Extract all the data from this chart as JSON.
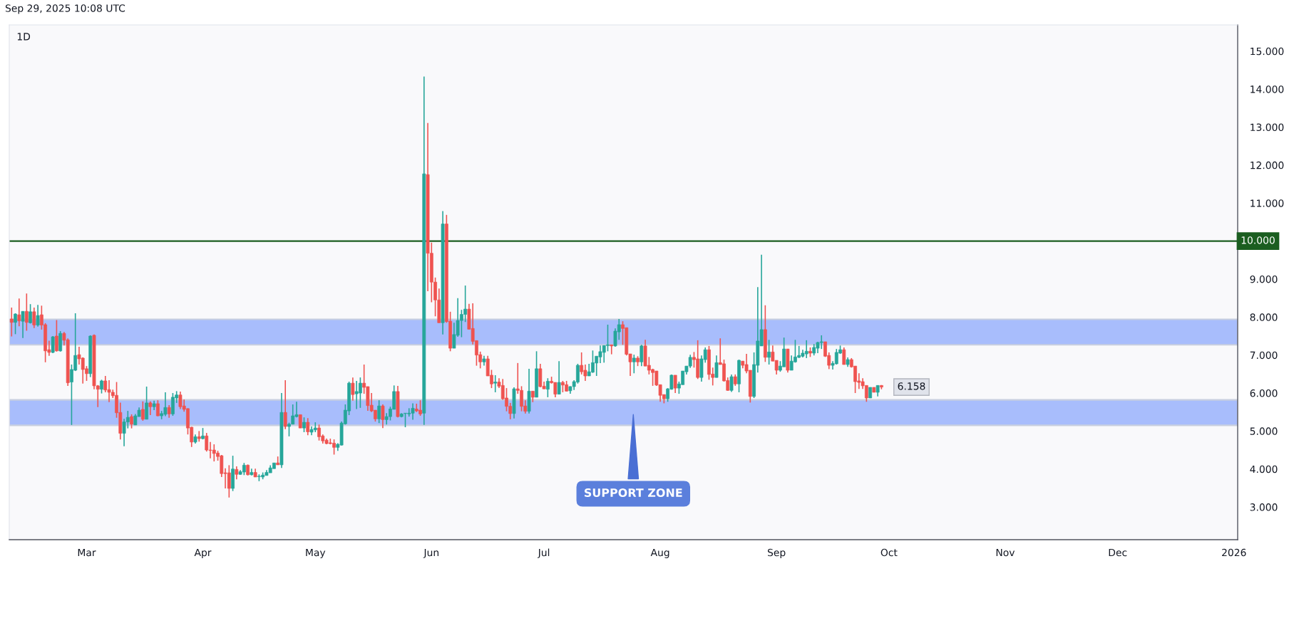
{
  "chart_data": {
    "type": "candlestick",
    "title": "1D",
    "annotations": [
      "Sep 29, 2025 10:08 UTC",
      {
        "text": "6.158",
        "x": "2025-09-29",
        "y": 6.158
      }
    ],
    "x": [
      "2025-02-09",
      "2025-02-10",
      "2025-02-11",
      "2025-02-12",
      "2025-02-13",
      "2025-02-14",
      "2025-02-15",
      "2025-02-16",
      "2025-02-17",
      "2025-02-18",
      "2025-02-19",
      "2025-02-20",
      "2025-02-21",
      "2025-02-22",
      "2025-02-23",
      "2025-02-24",
      "2025-02-25",
      "2025-02-26",
      "2025-02-27",
      "2025-02-28",
      "2025-03-01",
      "2025-03-02",
      "2025-03-03",
      "2025-03-04",
      "2025-03-05",
      "2025-03-06",
      "2025-03-07",
      "2025-03-08",
      "2025-03-09",
      "2025-03-10",
      "2025-03-11",
      "2025-03-12",
      "2025-03-13",
      "2025-03-14",
      "2025-03-15",
      "2025-03-16",
      "2025-03-17",
      "2025-03-18",
      "2025-03-19",
      "2025-03-20",
      "2025-03-21",
      "2025-03-22",
      "2025-03-23",
      "2025-03-24",
      "2025-03-25",
      "2025-03-26",
      "2025-03-27",
      "2025-03-28",
      "2025-03-29",
      "2025-03-30",
      "2025-03-31",
      "2025-04-01",
      "2025-04-02",
      "2025-04-03",
      "2025-04-04",
      "2025-04-05",
      "2025-04-06",
      "2025-04-07",
      "2025-04-08",
      "2025-04-09",
      "2025-04-10",
      "2025-04-11",
      "2025-04-12",
      "2025-04-13",
      "2025-04-14",
      "2025-04-15",
      "2025-04-16",
      "2025-04-17",
      "2025-04-18",
      "2025-04-19",
      "2025-04-20",
      "2025-04-21",
      "2025-04-22",
      "2025-04-23",
      "2025-04-24",
      "2025-04-25",
      "2025-04-26",
      "2025-04-27",
      "2025-04-28",
      "2025-04-29",
      "2025-04-30",
      "2025-05-01",
      "2025-05-02",
      "2025-05-03",
      "2025-05-04",
      "2025-05-05",
      "2025-05-06",
      "2025-05-07",
      "2025-05-08",
      "2025-05-09",
      "2025-05-10",
      "2025-05-11",
      "2025-05-12",
      "2025-05-13",
      "2025-05-14",
      "2025-05-15",
      "2025-05-16",
      "2025-05-17",
      "2025-05-18",
      "2025-05-19",
      "2025-05-20",
      "2025-05-21",
      "2025-05-22",
      "2025-05-23",
      "2025-05-24",
      "2025-05-25",
      "2025-05-26",
      "2025-05-27",
      "2025-05-28",
      "2025-05-29",
      "2025-05-30",
      "2025-05-31",
      "2025-06-01",
      "2025-06-02",
      "2025-06-03",
      "2025-06-04",
      "2025-06-05",
      "2025-06-06",
      "2025-06-07",
      "2025-06-08",
      "2025-06-09",
      "2025-06-10",
      "2025-06-11",
      "2025-06-12",
      "2025-06-13",
      "2025-06-14",
      "2025-06-15",
      "2025-06-16",
      "2025-06-17",
      "2025-06-18",
      "2025-06-19",
      "2025-06-20",
      "2025-06-21",
      "2025-06-22",
      "2025-06-23",
      "2025-06-24",
      "2025-06-25",
      "2025-06-26",
      "2025-06-27",
      "2025-06-28",
      "2025-06-29",
      "2025-06-30",
      "2025-07-01",
      "2025-07-02",
      "2025-07-03",
      "2025-07-04",
      "2025-07-05",
      "2025-07-06",
      "2025-07-07",
      "2025-07-08",
      "2025-07-09",
      "2025-07-10",
      "2025-07-11",
      "2025-07-12",
      "2025-07-13",
      "2025-07-14",
      "2025-07-15",
      "2025-07-16",
      "2025-07-17",
      "2025-07-18",
      "2025-07-19",
      "2025-07-20",
      "2025-07-21",
      "2025-07-22",
      "2025-07-23",
      "2025-07-24",
      "2025-07-25",
      "2025-07-26",
      "2025-07-27",
      "2025-07-28",
      "2025-07-29",
      "2025-07-30",
      "2025-07-31",
      "2025-08-01",
      "2025-08-02",
      "2025-08-03",
      "2025-08-04",
      "2025-08-05",
      "2025-08-06",
      "2025-08-07",
      "2025-08-08",
      "2025-08-09",
      "2025-08-10",
      "2025-08-11",
      "2025-08-12",
      "2025-08-13",
      "2025-08-14",
      "2025-08-15",
      "2025-08-16",
      "2025-08-17",
      "2025-08-18",
      "2025-08-19",
      "2025-08-20",
      "2025-08-21",
      "2025-08-22",
      "2025-08-23",
      "2025-08-24",
      "2025-08-25",
      "2025-08-26",
      "2025-08-27",
      "2025-08-28",
      "2025-08-29",
      "2025-08-30",
      "2025-08-31",
      "2025-09-01",
      "2025-09-02",
      "2025-09-03",
      "2025-09-04",
      "2025-09-05",
      "2025-09-06",
      "2025-09-07",
      "2025-09-08",
      "2025-09-09",
      "2025-09-10",
      "2025-09-11",
      "2025-09-12",
      "2025-09-13",
      "2025-09-14",
      "2025-09-15",
      "2025-09-16",
      "2025-09-17",
      "2025-09-18",
      "2025-09-19",
      "2025-09-20",
      "2025-09-21",
      "2025-09-22",
      "2025-09-23",
      "2025-09-24",
      "2025-09-25",
      "2025-09-26",
      "2025-09-27",
      "2025-09-28",
      "2025-09-29"
    ],
    "ohlc": [
      [
        7.95,
        8.25,
        7.49,
        7.86
      ],
      [
        7.86,
        8.1,
        7.55,
        8.08
      ],
      [
        8.06,
        8.49,
        7.76,
        7.9
      ],
      [
        7.89,
        8.15,
        7.45,
        8.15
      ],
      [
        8.15,
        8.62,
        7.64,
        7.86
      ],
      [
        7.85,
        8.34,
        7.83,
        8.14
      ],
      [
        8.14,
        8.25,
        7.71,
        7.79
      ],
      [
        7.79,
        8.32,
        7.75,
        8.04
      ],
      [
        8.06,
        8.3,
        7.67,
        7.79
      ],
      [
        7.8,
        7.84,
        6.81,
        7.11
      ],
      [
        7.14,
        7.38,
        6.98,
        7.07
      ],
      [
        7.07,
        7.5,
        7.05,
        7.48
      ],
      [
        7.5,
        7.92,
        7.09,
        7.11
      ],
      [
        7.11,
        7.63,
        7.09,
        7.57
      ],
      [
        7.57,
        7.61,
        7.25,
        7.39
      ],
      [
        7.4,
        7.44,
        6.19,
        6.27
      ],
      [
        6.29,
        6.75,
        5.16,
        6.62
      ],
      [
        6.6,
        8.1,
        6.58,
        6.99
      ],
      [
        7.01,
        7.22,
        6.75,
        6.9
      ],
      [
        6.92,
        6.94,
        6.25,
        6.62
      ],
      [
        6.64,
        6.71,
        6.32,
        6.51
      ],
      [
        6.51,
        7.52,
        6.42,
        7.5
      ],
      [
        7.52,
        7.54,
        6.1,
        6.19
      ],
      [
        6.19,
        6.21,
        5.63,
        6.1
      ],
      [
        6.1,
        6.35,
        5.99,
        6.32
      ],
      [
        6.32,
        6.45,
        6.02,
        6.08
      ],
      [
        6.09,
        6.34,
        5.76,
        6.02
      ],
      [
        6.02,
        6.09,
        5.87,
        5.93
      ],
      [
        5.94,
        6.29,
        5.35,
        5.48
      ],
      [
        5.49,
        5.75,
        4.78,
        4.94
      ],
      [
        4.94,
        5.32,
        4.6,
        5.24
      ],
      [
        5.24,
        5.53,
        5.07,
        5.36
      ],
      [
        5.38,
        5.44,
        5.07,
        5.18
      ],
      [
        5.16,
        5.45,
        5.16,
        5.4
      ],
      [
        5.38,
        5.62,
        5.38,
        5.55
      ],
      [
        5.57,
        5.78,
        5.27,
        5.31
      ],
      [
        5.31,
        6.17,
        5.31,
        5.74
      ],
      [
        5.74,
        5.78,
        5.42,
        5.64
      ],
      [
        5.64,
        5.8,
        5.55,
        5.72
      ],
      [
        5.72,
        5.81,
        5.39,
        5.4
      ],
      [
        5.4,
        5.53,
        5.31,
        5.46
      ],
      [
        5.44,
        6.02,
        5.39,
        5.62
      ],
      [
        5.62,
        5.68,
        5.35,
        5.45
      ],
      [
        5.45,
        6.0,
        5.4,
        5.89
      ],
      [
        5.87,
        6.05,
        5.74,
        5.95
      ],
      [
        5.95,
        6.04,
        5.58,
        5.64
      ],
      [
        5.66,
        5.83,
        5.51,
        5.57
      ],
      [
        5.59,
        5.6,
        4.91,
        5.08
      ],
      [
        5.1,
        5.11,
        4.58,
        4.71
      ],
      [
        4.71,
        4.91,
        4.67,
        4.85
      ],
      [
        4.85,
        5.0,
        4.72,
        4.8
      ],
      [
        4.8,
        5.08,
        4.78,
        4.87
      ],
      [
        4.87,
        4.95,
        4.46,
        4.5
      ],
      [
        4.5,
        4.71,
        4.28,
        4.49
      ],
      [
        4.5,
        4.65,
        4.2,
        4.41
      ],
      [
        4.42,
        4.48,
        4.22,
        4.33
      ],
      [
        4.35,
        4.37,
        3.79,
        3.88
      ],
      [
        3.9,
        4.02,
        3.49,
        3.88
      ],
      [
        3.9,
        4.1,
        3.25,
        3.49
      ],
      [
        3.49,
        4.35,
        3.42,
        4.0
      ],
      [
        3.99,
        4.07,
        3.73,
        3.86
      ],
      [
        3.86,
        3.97,
        3.85,
        3.93
      ],
      [
        3.92,
        4.16,
        3.84,
        4.1
      ],
      [
        4.1,
        4.12,
        3.83,
        3.85
      ],
      [
        3.85,
        4.01,
        3.83,
        3.91
      ],
      [
        3.91,
        4.01,
        3.79,
        3.79
      ],
      [
        3.8,
        3.86,
        3.68,
        3.81
      ],
      [
        3.79,
        3.91,
        3.73,
        3.84
      ],
      [
        3.83,
        3.97,
        3.83,
        3.91
      ],
      [
        3.9,
        4.1,
        3.9,
        4.03
      ],
      [
        4.01,
        4.16,
        4.01,
        4.16
      ],
      [
        4.16,
        4.33,
        4.11,
        4.11
      ],
      [
        4.11,
        6.0,
        4.03,
        5.49
      ],
      [
        5.49,
        6.34,
        5.05,
        5.12
      ],
      [
        5.12,
        5.22,
        4.86,
        5.18
      ],
      [
        5.18,
        5.7,
        5.18,
        5.4
      ],
      [
        5.38,
        5.77,
        5.36,
        5.43
      ],
      [
        5.43,
        5.43,
        5.08,
        5.08
      ],
      [
        5.08,
        5.36,
        4.97,
        5.23
      ],
      [
        5.23,
        5.34,
        4.89,
        4.98
      ],
      [
        4.97,
        5.12,
        4.89,
        5.04
      ],
      [
        5.03,
        5.23,
        4.97,
        5.08
      ],
      [
        5.08,
        5.17,
        4.75,
        4.85
      ],
      [
        4.87,
        4.91,
        4.67,
        4.74
      ],
      [
        4.76,
        4.8,
        4.65,
        4.67
      ],
      [
        4.69,
        4.8,
        4.65,
        4.67
      ],
      [
        4.68,
        4.78,
        4.38,
        4.57
      ],
      [
        4.57,
        4.68,
        4.48,
        4.65
      ],
      [
        4.63,
        5.25,
        4.62,
        5.21
      ],
      [
        5.19,
        5.7,
        5.17,
        5.55
      ],
      [
        5.53,
        6.3,
        5.42,
        6.26
      ],
      [
        6.26,
        6.41,
        5.8,
        5.96
      ],
      [
        5.98,
        6.32,
        5.58,
        6.04
      ],
      [
        6.0,
        6.41,
        5.61,
        6.26
      ],
      [
        6.26,
        6.75,
        5.98,
        6.15
      ],
      [
        6.17,
        6.17,
        5.53,
        5.67
      ],
      [
        5.68,
        6.0,
        5.5,
        5.53
      ],
      [
        5.55,
        5.55,
        5.25,
        5.32
      ],
      [
        5.32,
        5.81,
        5.21,
        5.66
      ],
      [
        5.66,
        5.7,
        5.08,
        5.3
      ],
      [
        5.3,
        5.47,
        5.17,
        5.38
      ],
      [
        5.38,
        5.64,
        5.28,
        5.58
      ],
      [
        5.57,
        6.2,
        5.57,
        6.04
      ],
      [
        6.04,
        6.19,
        5.36,
        5.38
      ],
      [
        5.38,
        5.47,
        5.36,
        5.45
      ],
      [
        5.46,
        5.47,
        5.1,
        5.47
      ],
      [
        5.45,
        5.6,
        5.38,
        5.47
      ],
      [
        5.47,
        5.73,
        5.3,
        5.6
      ],
      [
        5.58,
        5.72,
        5.5,
        5.53
      ],
      [
        5.55,
        5.81,
        5.4,
        5.45
      ],
      [
        5.47,
        14.33,
        5.16,
        11.77
      ],
      [
        11.75,
        13.11,
        8.68,
        9.68
      ],
      [
        9.68,
        9.96,
        8.39,
        8.92
      ],
      [
        8.92,
        9.04,
        8.02,
        8.45
      ],
      [
        8.45,
        8.75,
        7.85,
        7.85
      ],
      [
        7.85,
        10.79,
        7.54,
        10.45
      ],
      [
        10.45,
        10.69,
        7.85,
        7.88
      ],
      [
        7.89,
        8.14,
        7.1,
        7.18
      ],
      [
        7.18,
        7.85,
        7.18,
        7.54
      ],
      [
        7.52,
        8.5,
        7.48,
        7.91
      ],
      [
        7.91,
        8.19,
        7.47,
        8.07
      ],
      [
        8.07,
        8.83,
        7.87,
        8.21
      ],
      [
        8.21,
        8.35,
        7.68,
        7.68
      ],
      [
        7.7,
        8.36,
        7.28,
        7.36
      ],
      [
        7.38,
        7.38,
        6.72,
        7.0
      ],
      [
        7.01,
        7.09,
        6.65,
        6.82
      ],
      [
        6.82,
        6.98,
        6.72,
        6.9
      ],
      [
        6.9,
        6.98,
        6.45,
        6.45
      ],
      [
        6.47,
        6.61,
        6.13,
        6.24
      ],
      [
        6.26,
        6.47,
        6.02,
        6.29
      ],
      [
        6.29,
        6.39,
        6.13,
        6.18
      ],
      [
        6.2,
        6.37,
        5.82,
        5.85
      ],
      [
        5.87,
        6.13,
        5.52,
        5.65
      ],
      [
        5.65,
        5.74,
        5.31,
        5.46
      ],
      [
        5.46,
        6.15,
        5.33,
        6.11
      ],
      [
        6.11,
        6.79,
        5.98,
        6.07
      ],
      [
        6.07,
        6.18,
        5.52,
        5.65
      ],
      [
        5.66,
        5.81,
        5.46,
        5.52
      ],
      [
        5.52,
        6.64,
        5.46,
        6.05
      ],
      [
        6.05,
        6.05,
        5.76,
        5.89
      ],
      [
        5.89,
        7.1,
        5.89,
        6.64
      ],
      [
        6.64,
        6.77,
        6.15,
        6.17
      ],
      [
        6.18,
        6.3,
        6.11,
        6.11
      ],
      [
        6.1,
        6.39,
        5.89,
        6.31
      ],
      [
        6.31,
        6.43,
        6.25,
        6.27
      ],
      [
        6.28,
        6.28,
        5.89,
        5.97
      ],
      [
        5.97,
        6.84,
        5.97,
        6.28
      ],
      [
        6.28,
        6.32,
        6.02,
        6.21
      ],
      [
        6.22,
        6.32,
        6.04,
        6.05
      ],
      [
        6.06,
        6.18,
        5.98,
        6.17
      ],
      [
        6.17,
        6.34,
        6.08,
        6.3
      ],
      [
        6.29,
        6.77,
        6.25,
        6.73
      ],
      [
        6.73,
        7.07,
        6.49,
        6.56
      ],
      [
        6.6,
        6.75,
        6.32,
        6.45
      ],
      [
        6.45,
        6.77,
        6.45,
        6.56
      ],
      [
        6.55,
        7.12,
        6.53,
        6.8
      ],
      [
        6.79,
        6.97,
        6.45,
        6.97
      ],
      [
        6.95,
        7.25,
        6.79,
        7.09
      ],
      [
        7.07,
        7.25,
        6.8,
        7.25
      ],
      [
        7.25,
        7.8,
        7.1,
        7.27
      ],
      [
        7.27,
        7.27,
        7.02,
        7.24
      ],
      [
        7.24,
        7.7,
        7.22,
        7.63
      ],
      [
        7.61,
        7.95,
        7.4,
        7.8
      ],
      [
        7.8,
        7.89,
        7.27,
        7.7
      ],
      [
        7.72,
        7.72,
        6.99,
        7.02
      ],
      [
        7.03,
        7.03,
        6.45,
        6.82
      ],
      [
        6.82,
        7.01,
        6.52,
        6.92
      ],
      [
        6.92,
        6.97,
        6.71,
        6.82
      ],
      [
        6.82,
        7.27,
        6.71,
        7.24
      ],
      [
        7.24,
        7.4,
        6.71,
        6.71
      ],
      [
        6.73,
        6.95,
        6.49,
        6.6
      ],
      [
        6.62,
        6.64,
        6.19,
        6.54
      ],
      [
        6.58,
        6.58,
        6.19,
        6.21
      ],
      [
        6.22,
        6.22,
        5.77,
        5.94
      ],
      [
        5.96,
        5.96,
        5.73,
        5.85
      ],
      [
        5.85,
        6.13,
        5.77,
        6.11
      ],
      [
        6.1,
        6.49,
        6.09,
        6.47
      ],
      [
        6.47,
        6.47,
        6.0,
        6.13
      ],
      [
        6.13,
        6.3,
        5.98,
        6.24
      ],
      [
        6.22,
        6.58,
        6.22,
        6.58
      ],
      [
        6.56,
        6.71,
        6.49,
        6.71
      ],
      [
        6.71,
        7.01,
        6.66,
        6.94
      ],
      [
        6.94,
        7.08,
        6.67,
        6.88
      ],
      [
        6.9,
        7.39,
        6.37,
        6.41
      ],
      [
        6.41,
        6.99,
        6.3,
        6.9
      ],
      [
        6.88,
        7.2,
        6.8,
        7.14
      ],
      [
        7.14,
        7.24,
        6.35,
        6.49
      ],
      [
        6.5,
        6.67,
        6.2,
        6.41
      ],
      [
        6.41,
        6.99,
        6.41,
        6.8
      ],
      [
        6.8,
        7.44,
        6.75,
        6.75
      ],
      [
        6.77,
        6.88,
        6.3,
        6.32
      ],
      [
        6.33,
        6.41,
        6.06,
        6.07
      ],
      [
        6.07,
        6.49,
        6.03,
        6.43
      ],
      [
        6.43,
        6.49,
        6.19,
        6.24
      ],
      [
        6.24,
        6.88,
        6.02,
        6.86
      ],
      [
        6.84,
        6.84,
        6.65,
        6.73
      ],
      [
        6.75,
        7.03,
        6.52,
        6.58
      ],
      [
        6.6,
        6.6,
        5.75,
        5.91
      ],
      [
        5.91,
        7.07,
        5.87,
        6.75
      ],
      [
        6.73,
        8.79,
        6.54,
        7.37
      ],
      [
        7.24,
        9.64,
        7.24,
        7.67
      ],
      [
        7.67,
        8.31,
        6.82,
        6.94
      ],
      [
        6.94,
        7.4,
        6.75,
        7.08
      ],
      [
        7.08,
        7.25,
        6.84,
        6.84
      ],
      [
        6.86,
        6.86,
        6.49,
        6.6
      ],
      [
        6.6,
        6.84,
        6.56,
        6.71
      ],
      [
        6.69,
        7.46,
        6.69,
        7.16
      ],
      [
        7.16,
        7.16,
        6.54,
        6.6
      ],
      [
        6.6,
        6.99,
        6.6,
        6.84
      ],
      [
        6.82,
        7.4,
        6.8,
        6.95
      ],
      [
        6.94,
        7.24,
        6.92,
        6.99
      ],
      [
        6.97,
        7.14,
        6.94,
        7.05
      ],
      [
        7.03,
        7.39,
        6.92,
        7.1
      ],
      [
        7.1,
        7.2,
        6.95,
        7.05
      ],
      [
        7.05,
        7.29,
        6.99,
        7.2
      ],
      [
        7.18,
        7.35,
        7.05,
        7.33
      ],
      [
        7.33,
        7.52,
        7.16,
        7.35
      ],
      [
        7.35,
        7.35,
        6.95,
        6.97
      ],
      [
        6.99,
        7.07,
        6.63,
        6.73
      ],
      [
        6.73,
        6.84,
        6.62,
        6.78
      ],
      [
        6.77,
        7.16,
        6.75,
        7.07
      ],
      [
        7.05,
        7.25,
        7.03,
        7.14
      ],
      [
        7.14,
        7.2,
        6.75,
        6.75
      ],
      [
        6.75,
        6.94,
        6.69,
        6.88
      ],
      [
        6.88,
        6.92,
        6.67,
        6.69
      ],
      [
        6.71,
        6.71,
        6.0,
        6.3
      ],
      [
        6.32,
        6.52,
        6.11,
        6.28
      ],
      [
        6.3,
        6.39,
        6.11,
        6.19
      ],
      [
        6.2,
        6.2,
        5.77,
        5.87
      ],
      [
        5.87,
        6.15,
        5.87,
        6.15
      ],
      [
        6.15,
        6.15,
        6.02,
        6.02
      ],
      [
        6.02,
        6.2,
        5.91,
        6.2
      ],
      [
        6.2,
        6.21,
        6.1,
        6.158
      ]
    ],
    "colors": [
      "#ef5350",
      "#26a69a",
      "#ef5350",
      "#26a69a",
      "#ef5350",
      "#26a69a",
      "#ef5350",
      "#26a69a",
      "#ef5350",
      "#ef5350",
      "#ef5350",
      "#26a69a",
      "#ef5350",
      "#26a69a",
      "#ef5350",
      "#ef5350",
      "#26a69a",
      "#26a69a",
      "#ef5350",
      "#ef5350",
      "#ef5350",
      "#26a69a",
      "#ef5350",
      "#ef5350",
      "#26a69a",
      "#ef5350",
      "#ef5350",
      "#ef5350",
      "#ef5350",
      "#ef5350",
      "#26a69a",
      "#26a69a",
      "#ef5350",
      "#26a69a",
      "#26a69a",
      "#ef5350",
      "#26a69a",
      "#ef5350",
      "#26a69a",
      "#ef5350",
      "#26a69a",
      "#26a69a",
      "#ef5350",
      "#26a69a",
      "#26a69a",
      "#ef5350",
      "#ef5350",
      "#ef5350",
      "#ef5350",
      "#26a69a",
      "#ef5350",
      "#26a69a",
      "#ef5350",
      "#ef5350",
      "#ef5350",
      "#ef5350",
      "#ef5350",
      "#ef5350",
      "#ef5350",
      "#26a69a",
      "#ef5350",
      "#26a69a",
      "#26a69a",
      "#ef5350",
      "#26a69a",
      "#ef5350",
      "#26a69a",
      "#26a69a",
      "#26a69a",
      "#26a69a",
      "#26a69a",
      "#ef5350",
      "#26a69a",
      "#ef5350",
      "#26a69a",
      "#26a69a",
      "#26a69a",
      "#ef5350",
      "#26a69a",
      "#ef5350",
      "#26a69a",
      "#26a69a",
      "#ef5350",
      "#ef5350",
      "#ef5350",
      "#ef5350",
      "#ef5350",
      "#26a69a",
      "#26a69a",
      "#26a69a",
      "#26a69a",
      "#ef5350",
      "#26a69a",
      "#26a69a",
      "#ef5350",
      "#ef5350",
      "#ef5350",
      "#ef5350",
      "#26a69a",
      "#ef5350",
      "#26a69a",
      "#26a69a",
      "#26a69a",
      "#ef5350",
      "#26a69a",
      "#26a69a",
      "#26a69a",
      "#26a69a",
      "#ef5350",
      "#ef5350",
      "#26a69a",
      "#ef5350",
      "#ef5350",
      "#ef5350",
      "#ef5350",
      "#26a69a",
      "#ef5350",
      "#ef5350",
      "#26a69a",
      "#26a69a",
      "#26a69a",
      "#26a69a",
      "#ef5350",
      "#ef5350",
      "#ef5350",
      "#ef5350",
      "#26a69a",
      "#ef5350",
      "#ef5350",
      "#26a69a",
      "#ef5350",
      "#ef5350",
      "#ef5350",
      "#ef5350",
      "#26a69a",
      "#ef5350",
      "#ef5350",
      "#ef5350",
      "#26a69a",
      "#ef5350",
      "#26a69a",
      "#ef5350",
      "#ef5350",
      "#26a69a",
      "#ef5350",
      "#ef5350",
      "#26a69a",
      "#ef5350",
      "#ef5350",
      "#26a69a",
      "#26a69a",
      "#26a69a",
      "#ef5350",
      "#ef5350",
      "#26a69a",
      "#26a69a",
      "#26a69a",
      "#26a69a",
      "#26a69a",
      "#26a69a",
      "#ef5350",
      "#26a69a",
      "#26a69a",
      "#ef5350",
      "#ef5350",
      "#ef5350",
      "#26a69a",
      "#ef5350",
      "#26a69a",
      "#ef5350",
      "#ef5350",
      "#ef5350",
      "#ef5350",
      "#ef5350",
      "#ef5350",
      "#26a69a",
      "#26a69a",
      "#ef5350",
      "#26a69a",
      "#26a69a",
      "#26a69a",
      "#26a69a",
      "#ef5350",
      "#ef5350",
      "#26a69a",
      "#26a69a",
      "#ef5350",
      "#ef5350",
      "#26a69a",
      "#ef5350",
      "#ef5350",
      "#ef5350",
      "#26a69a",
      "#ef5350",
      "#26a69a",
      "#ef5350",
      "#ef5350",
      "#ef5350",
      "#26a69a",
      "#26a69a",
      "#26a69a",
      "#ef5350",
      "#26a69a",
      "#ef5350",
      "#ef5350",
      "#26a69a",
      "#26a69a",
      "#ef5350",
      "#26a69a",
      "#26a69a",
      "#26a69a",
      "#26a69a",
      "#26a69a",
      "#ef5350",
      "#26a69a",
      "#26a69a",
      "#26a69a",
      "#ef5350",
      "#ef5350",
      "#26a69a",
      "#26a69a",
      "#26a69a",
      "#ef5350",
      "#26a69a",
      "#ef5350",
      "#ef5350",
      "#ef5350",
      "#ef5350",
      "#ef5350",
      "#26a69a",
      "#ef5350",
      "#26a69a",
      "#ef5350"
    ],
    "xlim": [
      "2025-02-08T09:00",
      "2026-01-02"
    ],
    "ylim": [
      2.14,
      15.69
    ],
    "xticks": [
      {
        "value": "2025-03-01",
        "label": "Mar"
      },
      {
        "value": "2025-04-01",
        "label": "Apr"
      },
      {
        "value": "2025-05-01",
        "label": "May"
      },
      {
        "value": "2025-06-01",
        "label": "Jun"
      },
      {
        "value": "2025-07-01",
        "label": "Jul"
      },
      {
        "value": "2025-08-01",
        "label": "Aug"
      },
      {
        "value": "2025-09-01",
        "label": "Sep"
      },
      {
        "value": "2025-10-01",
        "label": "Oct"
      },
      {
        "value": "2025-11-01",
        "label": "Nov"
      },
      {
        "value": "2025-12-01",
        "label": "Dec"
      },
      {
        "value": "2026-01-01",
        "label": "2026"
      }
    ],
    "yticks": [
      {
        "value": 3,
        "label": "3.000"
      },
      {
        "value": 4,
        "label": "4.000"
      },
      {
        "value": 5,
        "label": "5.000"
      },
      {
        "value": 6,
        "label": "6.000"
      },
      {
        "value": 7,
        "label": "7.000"
      },
      {
        "value": 8,
        "label": "8.000"
      },
      {
        "value": 9,
        "label": "9.000"
      },
      {
        "value": 10,
        "label": null
      },
      {
        "value": 11,
        "label": "11.000"
      },
      {
        "value": 12,
        "label": "12.000"
      },
      {
        "value": 13,
        "label": "13.000"
      },
      {
        "value": 14,
        "label": "14.000"
      },
      {
        "value": 15,
        "label": "15.000"
      }
    ],
    "ref_lines": [
      {
        "axis": "y",
        "value": 10,
        "label": "10.000",
        "color": "#1b5e20"
      }
    ],
    "bands": [
      {
        "axis": "y",
        "from": 5.15,
        "to": 5.82,
        "color": "#a8bdfc",
        "label": "SUPPORT ZONE"
      },
      {
        "axis": "y",
        "from": 7.27,
        "to": 7.94,
        "color": "#a8bdfc"
      }
    ]
  }
}
